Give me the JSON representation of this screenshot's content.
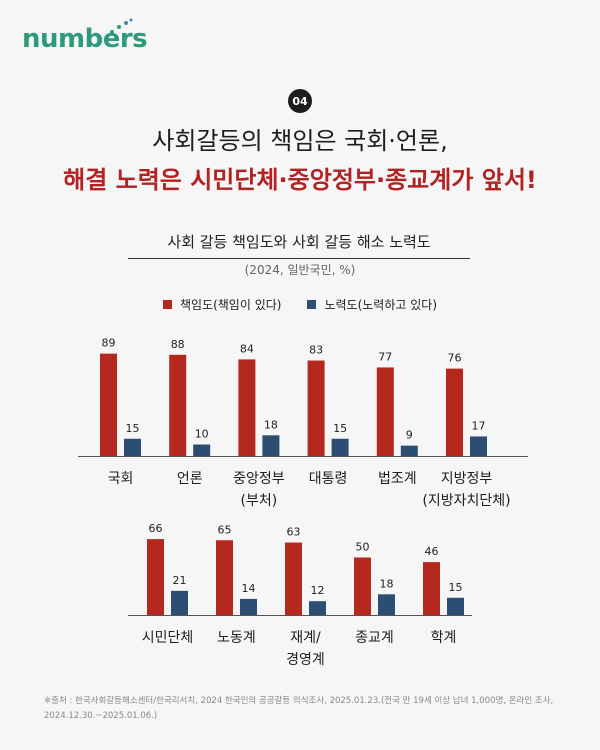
{
  "brand": {
    "logo_text": "numbers"
  },
  "header": {
    "badge": "04",
    "headline_line1": "사회갈등의 책임은 국회·언론,",
    "headline_line2": "해결 노력은 시민단체·중앙정부·종교계가 앞서!"
  },
  "colors": {
    "responsibility": "#b42820",
    "effort": "#2b4e72",
    "accent_text": "#b32222"
  },
  "chart_data": {
    "type": "bar",
    "title": "사회 갈등 책임도와 사회 갈등 해소 노력도",
    "subtitle": "(2024, 일반국민, %)",
    "legend": [
      "책임도(책임이 있다)",
      "노력도(노력하고 있다)"
    ],
    "categories": [
      "국회",
      "언론",
      "중앙정부\n(부처)",
      "대통령",
      "법조계",
      "지방정부\n(지방자치단체)",
      "시민단체",
      "노동계",
      "재계/\n경영계",
      "종교계",
      "학계"
    ],
    "series": [
      {
        "name": "책임도(책임이 있다)",
        "values": [
          89,
          88,
          84,
          83,
          77,
          76,
          66,
          65,
          63,
          50,
          46
        ]
      },
      {
        "name": "노력도(노력하고 있다)",
        "values": [
          15,
          10,
          18,
          15,
          9,
          17,
          21,
          14,
          12,
          18,
          15
        ]
      }
    ],
    "panels": [
      {
        "category_count": 6
      },
      {
        "category_count": 5
      }
    ],
    "ylim": [
      0,
      100
    ]
  },
  "footnote": "※출처 : 한국사회갈등해소센터/한국리서치, 2024 한국인의 공공갈등 의식조사, 2025.01.23.(전국 만 19세 이상 남녀 1,000명, 온라인 조사, 2024.12.30.~2025.01.06.)"
}
